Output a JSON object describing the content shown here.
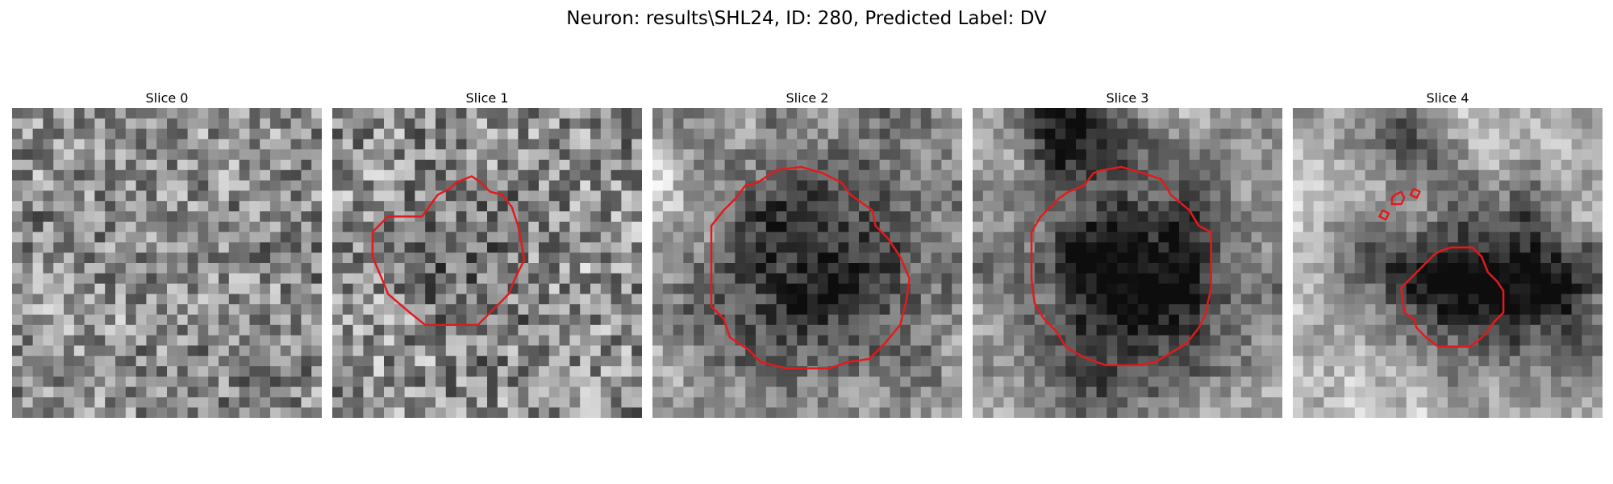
{
  "figure": {
    "title": "Neuron: results\\SHL24, ID: 280, Predicted Label: DV"
  },
  "colors": {
    "contour": "#e31a1c",
    "background": "#ffffff"
  },
  "panels": [
    {
      "title": "Slice 0"
    },
    {
      "title": "Slice 1"
    },
    {
      "title": "Slice 2"
    },
    {
      "title": "Slice 3"
    },
    {
      "title": "Slice 4"
    }
  ]
}
